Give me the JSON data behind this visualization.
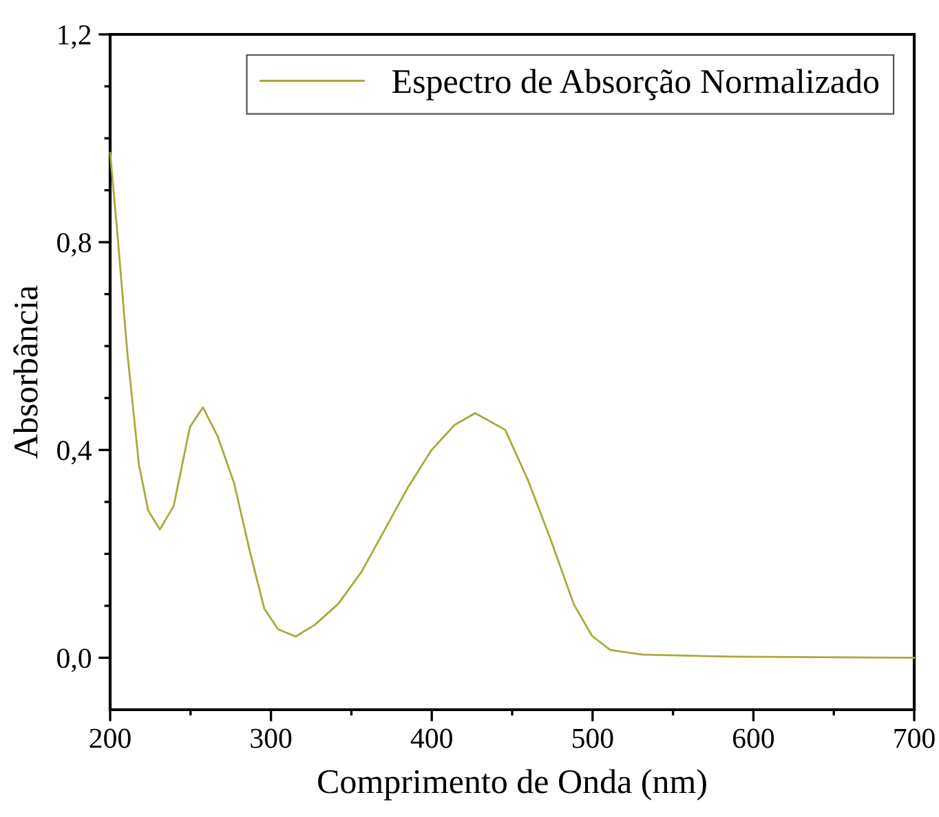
{
  "chart_data": {
    "type": "line",
    "xlabel": "Comprimento de Onda (nm)",
    "ylabel": "Absorbância",
    "xlim": [
      200,
      700
    ],
    "ylim": [
      -0.1,
      1.2
    ],
    "xticks": [
      200,
      {
        "value": 250,
        "label": null
      },
      300,
      {
        "value": 350,
        "label": null
      },
      400,
      {
        "value": 450,
        "label": null
      },
      500,
      {
        "value": 550,
        "label": null
      },
      600,
      {
        "value": 650,
        "label": null
      },
      700
    ],
    "yticks": [
      {
        "value": 0.0,
        "label": "0,0"
      },
      {
        "value": 0.1,
        "label": null
      },
      {
        "value": 0.2,
        "label": null
      },
      {
        "value": 0.3,
        "label": null
      },
      {
        "value": 0.4,
        "label": "0,4"
      },
      {
        "value": 0.5,
        "label": null
      },
      {
        "value": 0.6,
        "label": null
      },
      {
        "value": 0.7,
        "label": null
      },
      {
        "value": 0.8,
        "label": "0,8"
      },
      {
        "value": 0.9,
        "label": null
      },
      {
        "value": 1.0,
        "label": null
      },
      {
        "value": 1.1,
        "label": null
      },
      {
        "value": 1.2,
        "label": "1,2"
      }
    ],
    "grid": false,
    "legend": "top right",
    "marker": "none",
    "line_style": "solid",
    "series": [
      {
        "name": "Espectro de Absorção Normalizado",
        "color": "#a9a93a",
        "x": [
          200,
          204.9,
          210.7,
          217.9,
          223.7,
          230.9,
          239.5,
          249.6,
          257.7,
          266.9,
          277,
          287.1,
          295.8,
          304.4,
          315.4,
          327.5,
          341.9,
          356.4,
          370.8,
          385.2,
          399.6,
          414.1,
          427,
          445.6,
          459.8,
          474,
          488.3,
          499.7,
          511,
          531,
          588,
          700
        ],
        "values": [
          0.972,
          0.802,
          0.587,
          0.372,
          0.283,
          0.247,
          0.292,
          0.444,
          0.482,
          0.426,
          0.337,
          0.202,
          0.095,
          0.055,
          0.041,
          0.064,
          0.104,
          0.166,
          0.247,
          0.328,
          0.399,
          0.448,
          0.471,
          0.439,
          0.342,
          0.227,
          0.103,
          0.042,
          0.015,
          0.006,
          0.002,
          0.0
        ]
      }
    ]
  }
}
